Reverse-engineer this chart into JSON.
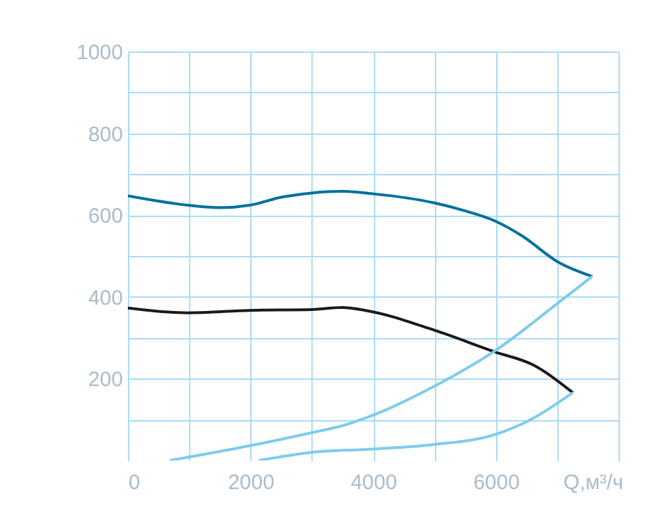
{
  "chart_data": {
    "type": "line",
    "xlabel": "Q,м³/ч",
    "xlim": [
      0,
      8000
    ],
    "xticks": [
      0,
      {
        "value": 1000,
        "label": null
      },
      2000,
      {
        "value": 3000,
        "label": null
      },
      4000,
      {
        "value": 5000,
        "label": null
      },
      6000,
      {
        "value": 7000,
        "label": null
      },
      {
        "value": 8000,
        "label": null
      }
    ],
    "ylim": [
      0,
      1000
    ],
    "yticks": [
      {
        "value": 100,
        "label": null
      },
      200,
      {
        "value": 300,
        "label": null
      },
      400,
      {
        "value": 500,
        "label": null
      },
      600,
      {
        "value": 700,
        "label": null
      },
      800,
      {
        "value": 900,
        "label": null
      },
      1000
    ],
    "grid": true,
    "legend": false,
    "series": [
      {
        "color": "#00709e",
        "x": [
          0,
          981,
          1495,
          1986,
          2514,
          2997,
          3495,
          4002,
          4990,
          5459,
          5995,
          6440,
          7006,
          7572
        ],
        "values": [
          647,
          624,
          618,
          624,
          644,
          654,
          658,
          652,
          630,
          612,
          585,
          548,
          486,
          450
        ]
      },
      {
        "color": "#1a1a1a",
        "x": [
          0,
          981,
          1986,
          2997,
          3495,
          3873,
          4990,
          5995,
          6591,
          7255
        ],
        "values": [
          373,
          361,
          367,
          369,
          374,
          367,
          319,
          265,
          235,
          166
        ]
      },
      {
        "color": "#7fcbed",
        "x": [
          680,
          1986,
          2997,
          3495,
          4002,
          4990,
          5995,
          7006,
          7572
        ],
        "values": [
          0,
          36,
          68,
          85,
          111,
          181,
          269,
          384,
          450
        ]
      },
      {
        "color": "#7fcbed",
        "x": [
          2136,
          2997,
          4002,
          4990,
          5995,
          6591,
          7255
        ],
        "values": [
          0,
          20,
          28,
          39,
          64,
          102,
          166
        ]
      }
    ]
  }
}
